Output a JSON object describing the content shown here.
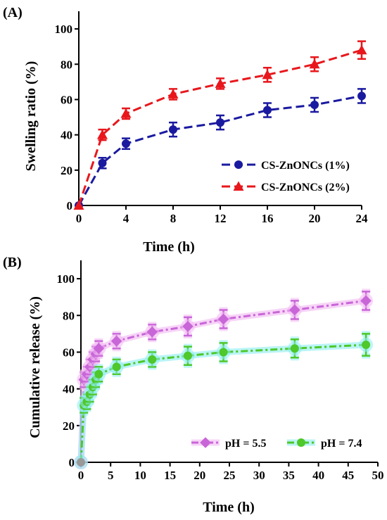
{
  "panels": [
    {
      "label": "(A)",
      "type": "line",
      "xlabel": "Time (h)",
      "ylabel": "Swelling ratio (%)",
      "xlim": [
        0,
        24
      ],
      "ylim": [
        0,
        110
      ],
      "xticks": [
        0,
        4,
        8,
        12,
        16,
        20,
        24
      ],
      "yticks": [
        0,
        20,
        40,
        60,
        80,
        100
      ],
      "legend": "bottom-right",
      "series": [
        {
          "name": "CS-ZnONCs (1%)",
          "color": "#1a1aa0",
          "marker": "circle",
          "x": [
            0,
            2,
            4,
            8,
            12,
            16,
            20,
            24
          ],
          "y": [
            0,
            24,
            35,
            43,
            47,
            54,
            57,
            62
          ],
          "err": [
            0,
            3,
            3,
            4,
            4,
            4,
            4,
            4
          ]
        },
        {
          "name": "CS-ZnONCs (2%)",
          "color": "#e8171c",
          "marker": "triangle",
          "x": [
            0,
            2,
            4,
            8,
            12,
            16,
            20,
            24
          ],
          "y": [
            0,
            40,
            52,
            63,
            69,
            74,
            80,
            88
          ],
          "err": [
            0,
            3,
            3,
            3,
            3,
            4,
            4,
            5
          ]
        }
      ]
    },
    {
      "label": "(B)",
      "type": "line",
      "xlabel": "Time  (h)",
      "ylabel": "Cumulative  release  (%)",
      "xlim": [
        0,
        50
      ],
      "ylim": [
        0,
        110
      ],
      "xticks": [
        0,
        5,
        10,
        15,
        20,
        25,
        30,
        35,
        40,
        45,
        50
      ],
      "yticks": [
        0,
        20,
        40,
        60,
        80,
        100
      ],
      "legend": "bottom-right",
      "series": [
        {
          "name": "pH = 5.5",
          "color": "#c866d8",
          "glow": "#f2b8f2",
          "marker": "diamond",
          "x": [
            0,
            0.5,
            1,
            1.5,
            2,
            2.5,
            3,
            6,
            12,
            18,
            24,
            36,
            48
          ],
          "y": [
            0,
            45,
            48,
            52,
            56,
            59,
            62,
            66,
            71,
            74,
            78,
            83,
            88
          ],
          "err": [
            0,
            4,
            4,
            4,
            4,
            4,
            4,
            4,
            4,
            5,
            5,
            5,
            5
          ]
        },
        {
          "name": "pH = 7.4",
          "color": "#4ec82a",
          "glow": "#8cecf0",
          "marker": "circle",
          "x": [
            0,
            0.5,
            1,
            1.5,
            2,
            2.5,
            3,
            6,
            12,
            18,
            24,
            36,
            48
          ],
          "y": [
            0,
            31,
            33,
            37,
            41,
            45,
            48,
            52,
            56,
            58,
            60,
            62,
            64
          ],
          "err": [
            0,
            4,
            4,
            4,
            4,
            4,
            4,
            4,
            4,
            5,
            5,
            5,
            6
          ]
        }
      ]
    }
  ]
}
